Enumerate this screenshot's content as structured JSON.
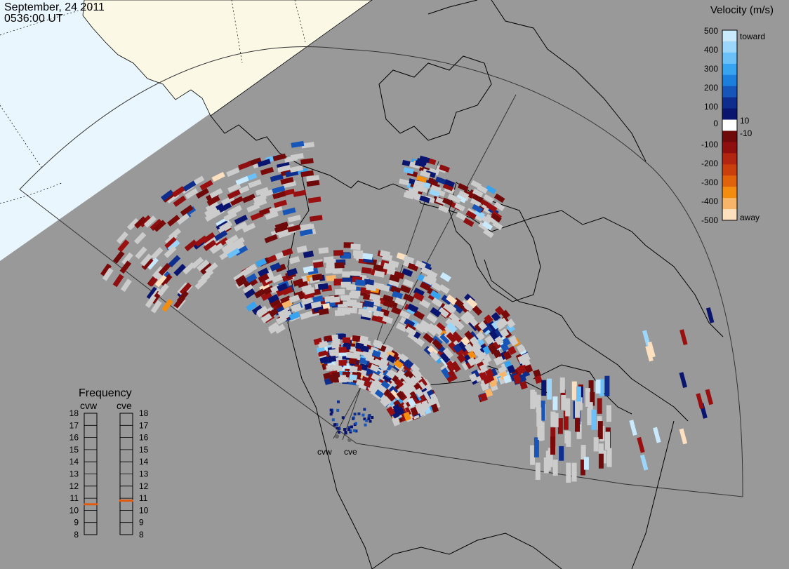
{
  "header": {
    "date": "September, 24 2011",
    "time": "0536:00 UT"
  },
  "colors": {
    "background": "#999999",
    "daylight": "#eaf6fd",
    "land_daylight": "#fbf8e6",
    "scatter_ground": "#cccccc",
    "coast": "#000000"
  },
  "velocity_scale": {
    "title": "Velocity (m/s)",
    "ticks": [
      "500",
      "400",
      "300",
      "200",
      "100",
      "10",
      "0",
      "-10",
      "-100",
      "-200",
      "-300",
      "-400",
      "-500"
    ],
    "toward_label": "toward",
    "away_label": "away",
    "colors": [
      "#c9eafc",
      "#9dd6fb",
      "#6cc0f8",
      "#38a3ef",
      "#1c7fdc",
      "#1755b8",
      "#0e2d8c",
      "#0a1570",
      "#ffffff",
      "#6e0a0a",
      "#8f0f10",
      "#b22510",
      "#c9400c",
      "#e0620a",
      "#f28d0f",
      "#f7b56a",
      "#fde0bf"
    ]
  },
  "frequency": {
    "title": "Frequency",
    "ticks": [
      "18",
      "17",
      "16",
      "15",
      "14",
      "13",
      "12",
      "11",
      "10",
      "9",
      "8"
    ],
    "radars": [
      {
        "name": "cvw",
        "value_mhz": 10.5
      },
      {
        "name": "cve",
        "value_mhz": 10.8
      }
    ],
    "marker_color": "#e25a0c"
  },
  "radar_sites": [
    {
      "name": "cvw"
    },
    {
      "name": "cve"
    }
  ]
}
